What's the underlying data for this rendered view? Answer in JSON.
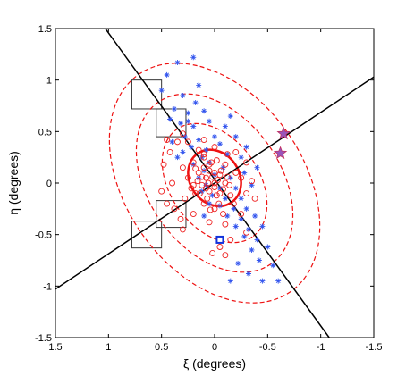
{
  "chart_data": {
    "type": "scatter",
    "xlabel": "ξ (degrees)",
    "ylabel": "η (degrees)",
    "xlim": [
      1.5,
      -1.5
    ],
    "ylim": [
      -1.5,
      1.5
    ],
    "x_reversed": true,
    "xticks": [
      "1.5",
      "1",
      "0.5",
      "0",
      "-0.5",
      "-1",
      "-1.5"
    ],
    "xtick_values": [
      1.5,
      1,
      0.5,
      0,
      -0.5,
      -1,
      -1.5
    ],
    "yticks": [
      "1.5",
      "1",
      "0.5",
      "0",
      "-0.5",
      "-1",
      "-1.5"
    ],
    "ytick_values": [
      1.5,
      1,
      0.5,
      0,
      -0.5,
      -1,
      -1.5
    ],
    "grid": false,
    "colors": {
      "asterisks": "#3355ee",
      "circles": "#ee2222",
      "ellipse": "#ee1111",
      "stars": "#9955bb",
      "square": "#1133dd",
      "lines": "#000000",
      "boxes": "#333333"
    },
    "lines": [
      {
        "x1": 1.03,
        "y1": 1.5,
        "x2": -1.08,
        "y2": -1.5
      },
      {
        "x1": 1.5,
        "y1": -1.03,
        "x2": -1.5,
        "y2": 1.03
      }
    ],
    "ellipses": [
      {
        "cx": 0.0,
        "cy": 0.05,
        "a": 0.28,
        "b": 0.24,
        "angle_deg": 55,
        "style": "solid"
      },
      {
        "cx": 0.0,
        "cy": 0.0,
        "a": 0.62,
        "b": 0.43,
        "angle_deg": 55,
        "style": "dashed"
      },
      {
        "cx": 0.0,
        "cy": 0.0,
        "a": 0.93,
        "b": 0.64,
        "angle_deg": 55,
        "style": "dashed"
      },
      {
        "cx": 0.0,
        "cy": 0.0,
        "a": 1.25,
        "b": 0.86,
        "angle_deg": 55,
        "style": "dashed"
      }
    ],
    "boxes": [
      {
        "x0": 0.78,
        "x1": 0.5,
        "y0": 0.72,
        "y1": 1.0
      },
      {
        "x0": 0.55,
        "x1": 0.27,
        "y0": 0.45,
        "y1": 0.72
      },
      {
        "x0": 0.55,
        "x1": 0.27,
        "y0": -0.43,
        "y1": -0.17
      },
      {
        "x0": 0.78,
        "x1": 0.5,
        "y0": -0.63,
        "y1": -0.37
      }
    ],
    "stars": [
      {
        "x": -0.65,
        "y": 0.48
      },
      {
        "x": -0.62,
        "y": 0.29
      }
    ],
    "square_marker": {
      "x": -0.05,
      "y": -0.55
    },
    "asterisk_points": [
      [
        0.35,
        1.17
      ],
      [
        0.2,
        1.22
      ],
      [
        0.45,
        1.05
      ],
      [
        0.5,
        0.9
      ],
      [
        0.3,
        0.85
      ],
      [
        0.15,
        0.95
      ],
      [
        0.38,
        0.72
      ],
      [
        0.25,
        0.68
      ],
      [
        0.1,
        0.7
      ],
      [
        0.32,
        0.58
      ],
      [
        0.2,
        0.55
      ],
      [
        0.05,
        0.6
      ],
      [
        -0.1,
        0.55
      ],
      [
        0.28,
        0.45
      ],
      [
        0.15,
        0.42
      ],
      [
        0.4,
        0.4
      ],
      [
        0.0,
        0.45
      ],
      [
        -0.2,
        0.45
      ],
      [
        0.22,
        0.35
      ],
      [
        0.08,
        0.32
      ],
      [
        -0.05,
        0.38
      ],
      [
        -0.3,
        0.35
      ],
      [
        0.3,
        0.3
      ],
      [
        0.12,
        0.25
      ],
      [
        0.05,
        0.2
      ],
      [
        -0.12,
        0.28
      ],
      [
        -0.25,
        0.25
      ],
      [
        0.2,
        0.18
      ],
      [
        0.1,
        0.12
      ],
      [
        -0.08,
        0.15
      ],
      [
        0.15,
        0.05
      ],
      [
        0.0,
        0.08
      ],
      [
        -0.15,
        0.05
      ],
      [
        0.08,
        -0.02
      ],
      [
        -0.05,
        -0.05
      ],
      [
        -0.2,
        -0.05
      ],
      [
        0.02,
        -0.12
      ],
      [
        -0.1,
        -0.15
      ],
      [
        -0.25,
        -0.15
      ],
      [
        -0.05,
        -0.22
      ],
      [
        -0.18,
        -0.25
      ],
      [
        -0.3,
        -0.25
      ],
      [
        -0.12,
        -0.32
      ],
      [
        -0.25,
        -0.35
      ],
      [
        -0.38,
        -0.32
      ],
      [
        -0.2,
        -0.42
      ],
      [
        -0.32,
        -0.45
      ],
      [
        -0.45,
        -0.42
      ],
      [
        -0.28,
        -0.52
      ],
      [
        -0.4,
        -0.55
      ],
      [
        -0.35,
        -0.65
      ],
      [
        -0.5,
        -0.62
      ],
      [
        -0.22,
        -0.78
      ],
      [
        -0.42,
        -0.75
      ],
      [
        -0.55,
        -0.8
      ],
      [
        -0.32,
        -0.88
      ],
      [
        -0.45,
        -0.95
      ],
      [
        -0.6,
        -0.95
      ],
      [
        -0.15,
        -0.95
      ],
      [
        0.05,
        -0.2
      ],
      [
        0.12,
        -0.08
      ],
      [
        -0.28,
        0.1
      ],
      [
        -0.35,
        -0.02
      ],
      [
        0.25,
        0.6
      ],
      [
        0.42,
        0.62
      ],
      [
        -0.15,
        0.65
      ],
      [
        0.18,
        0.78
      ],
      [
        0.35,
        0.25
      ],
      [
        -0.4,
        0.15
      ],
      [
        0.1,
        -0.32
      ]
    ],
    "circle_points": [
      [
        0.1,
        0.25
      ],
      [
        0.05,
        0.18
      ],
      [
        -0.02,
        0.22
      ],
      [
        0.15,
        0.1
      ],
      [
        0.08,
        0.05
      ],
      [
        -0.05,
        0.08
      ],
      [
        0.0,
        0.0
      ],
      [
        0.12,
        -0.02
      ],
      [
        -0.1,
        0.0
      ],
      [
        0.05,
        -0.08
      ],
      [
        -0.05,
        -0.1
      ],
      [
        0.18,
        -0.1
      ],
      [
        -0.15,
        -0.12
      ],
      [
        0.2,
        0.2
      ],
      [
        0.25,
        0.05
      ],
      [
        0.22,
        -0.05
      ],
      [
        -0.2,
        0.1
      ],
      [
        -0.18,
        -0.2
      ],
      [
        0.1,
        -0.2
      ],
      [
        0.0,
        -0.25
      ],
      [
        -0.08,
        -0.3
      ],
      [
        0.3,
        0.15
      ],
      [
        0.28,
        -0.15
      ],
      [
        -0.25,
        0.05
      ],
      [
        0.15,
        0.32
      ],
      [
        0.0,
        0.35
      ],
      [
        -0.12,
        0.28
      ],
      [
        0.35,
        0.4
      ],
      [
        0.45,
        0.42
      ],
      [
        0.42,
        0.3
      ],
      [
        0.3,
        0.48
      ],
      [
        0.38,
        -0.25
      ],
      [
        0.32,
        -0.35
      ],
      [
        0.45,
        -0.2
      ],
      [
        0.2,
        -0.3
      ],
      [
        0.05,
        -0.38
      ],
      [
        -0.1,
        -0.4
      ],
      [
        -0.25,
        -0.3
      ],
      [
        -0.3,
        -0.1
      ],
      [
        -0.35,
        0.02
      ],
      [
        0.5,
        -0.08
      ],
      [
        0.4,
        0.0
      ],
      [
        -0.3,
        0.2
      ],
      [
        -0.15,
        -0.55
      ],
      [
        -0.05,
        -0.62
      ],
      [
        -0.1,
        -0.7
      ],
      [
        0.02,
        -0.68
      ],
      [
        -0.3,
        -0.48
      ],
      [
        0.48,
        0.18
      ],
      [
        0.25,
        0.4
      ],
      [
        -0.2,
        0.3
      ],
      [
        0.1,
        0.42
      ],
      [
        -0.38,
        -0.15
      ],
      [
        0.3,
        -0.45
      ]
    ],
    "dense_core_circles": [
      [
        0.05,
        0.12
      ],
      [
        0.02,
        0.06
      ],
      [
        -0.03,
        0.03
      ],
      [
        0.08,
        -0.05
      ],
      [
        0.0,
        -0.04
      ],
      [
        -0.06,
        0.12
      ],
      [
        0.1,
        0.15
      ],
      [
        0.06,
        0.0
      ],
      [
        -0.02,
        -0.12
      ],
      [
        0.12,
        0.06
      ],
      [
        -0.08,
        -0.06
      ],
      [
        0.03,
        0.2
      ],
      [
        0.14,
        -0.1
      ],
      [
        -0.12,
        0.06
      ],
      [
        0.07,
        -0.15
      ],
      [
        0.0,
        0.1
      ],
      [
        0.16,
        0.02
      ],
      [
        -0.04,
        -0.2
      ],
      [
        0.1,
        0.28
      ],
      [
        0.18,
        0.14
      ],
      [
        -0.1,
        0.18
      ],
      [
        0.2,
        -0.02
      ],
      [
        -0.14,
        -0.02
      ],
      [
        0.04,
        -0.26
      ]
    ]
  }
}
